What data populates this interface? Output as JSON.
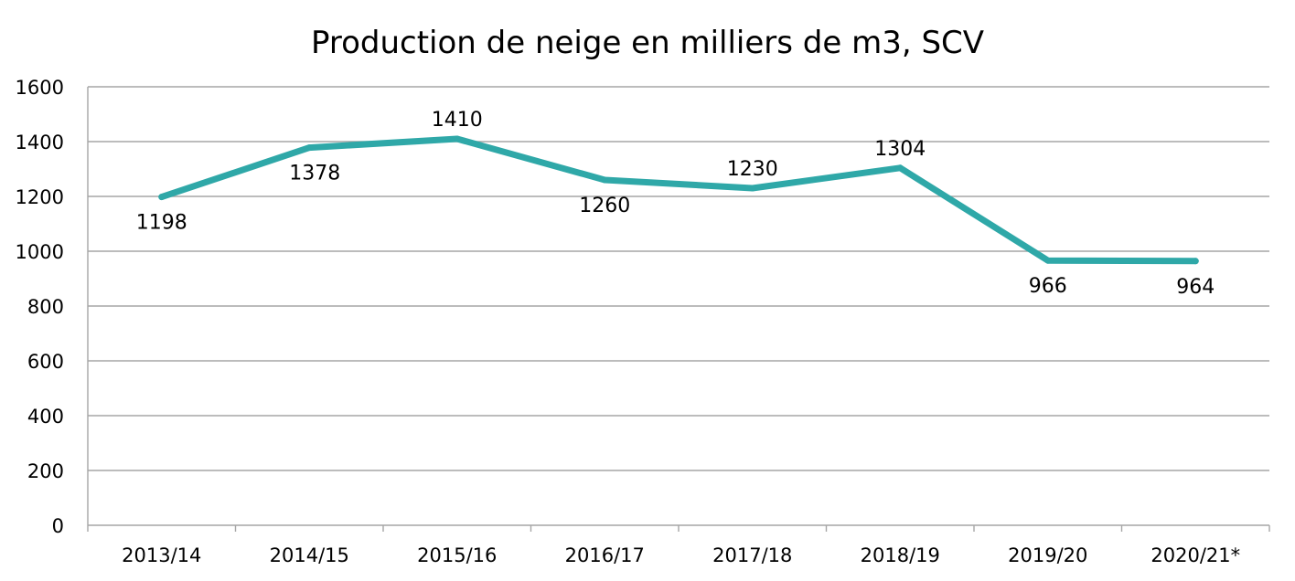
{
  "chart_data": {
    "type": "line",
    "title": "Production de neige en milliers de m3, SCV",
    "xlabel": "",
    "ylabel": "",
    "categories": [
      "2013/14",
      "2014/15",
      "2015/16",
      "2016/17",
      "2017/18",
      "2018/19",
      "2019/20",
      "2020/21*"
    ],
    "series": [
      {
        "values": [
          1198,
          1378,
          1410,
          1260,
          1230,
          1304,
          966,
          964
        ],
        "labels": [
          "1198",
          "1378",
          "1410",
          "1260",
          "1230",
          "1304",
          "966",
          "964"
        ],
        "color": "#2fa8a8"
      }
    ],
    "ylim": [
      0,
      1600
    ],
    "yticks": [
      "0",
      "200",
      "400",
      "600",
      "800",
      "1000",
      "1200",
      "1400",
      "1600"
    ],
    "grid": "horizontal",
    "legend": "none"
  }
}
